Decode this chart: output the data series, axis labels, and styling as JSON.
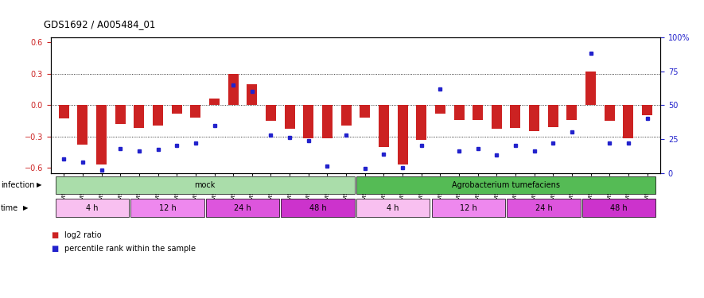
{
  "title": "GDS1692 / A005484_01",
  "samples": [
    "GSM94186",
    "GSM94187",
    "GSM94188",
    "GSM94201",
    "GSM94189",
    "GSM94190",
    "GSM94191",
    "GSM94192",
    "GSM94193",
    "GSM94194",
    "GSM94195",
    "GSM94196",
    "GSM94197",
    "GSM94198",
    "GSM94199",
    "GSM94200",
    "GSM94076",
    "GSM94149",
    "GSM94150",
    "GSM94151",
    "GSM94152",
    "GSM94153",
    "GSM94154",
    "GSM94158",
    "GSM94159",
    "GSM94179",
    "GSM94180",
    "GSM94181",
    "GSM94182",
    "GSM94183",
    "GSM94184",
    "GSM94185"
  ],
  "log2_ratio": [
    -0.13,
    -0.38,
    -0.57,
    -0.18,
    -0.22,
    -0.2,
    -0.08,
    -0.12,
    0.06,
    0.3,
    0.2,
    -0.15,
    -0.23,
    -0.32,
    -0.32,
    -0.2,
    -0.12,
    -0.4,
    -0.57,
    -0.33,
    -0.08,
    -0.14,
    -0.14,
    -0.23,
    -0.22,
    -0.25,
    -0.21,
    -0.14,
    0.32,
    -0.15,
    -0.32,
    -0.1
  ],
  "percentile": [
    10,
    8,
    2,
    18,
    16,
    17,
    20,
    22,
    35,
    65,
    60,
    28,
    26,
    24,
    5,
    28,
    3,
    14,
    4,
    20,
    62,
    16,
    18,
    13,
    20,
    16,
    22,
    30,
    88,
    22,
    22,
    40
  ],
  "infection_groups": [
    {
      "label": "mock",
      "start": 0,
      "end": 16,
      "color": "#aaddaa"
    },
    {
      "label": "Agrobacterium tumefaciens",
      "start": 16,
      "end": 32,
      "color": "#55bb55"
    }
  ],
  "time_groups": [
    {
      "label": "4 h",
      "start": 0,
      "end": 4,
      "color": "#f8c0f0"
    },
    {
      "label": "12 h",
      "start": 4,
      "end": 8,
      "color": "#ee88ee"
    },
    {
      "label": "24 h",
      "start": 8,
      "end": 12,
      "color": "#dd55dd"
    },
    {
      "label": "48 h",
      "start": 12,
      "end": 16,
      "color": "#cc33cc"
    },
    {
      "label": "4 h",
      "start": 16,
      "end": 20,
      "color": "#f8c0f0"
    },
    {
      "label": "12 h",
      "start": 20,
      "end": 24,
      "color": "#ee88ee"
    },
    {
      "label": "24 h",
      "start": 24,
      "end": 28,
      "color": "#dd55dd"
    },
    {
      "label": "48 h",
      "start": 28,
      "end": 32,
      "color": "#cc33cc"
    }
  ],
  "ylim_left": [
    -0.65,
    0.65
  ],
  "ylim_right": [
    0,
    100
  ],
  "bar_color": "#CC2222",
  "dot_color": "#2222CC",
  "bg_color": "#FFFFFF"
}
